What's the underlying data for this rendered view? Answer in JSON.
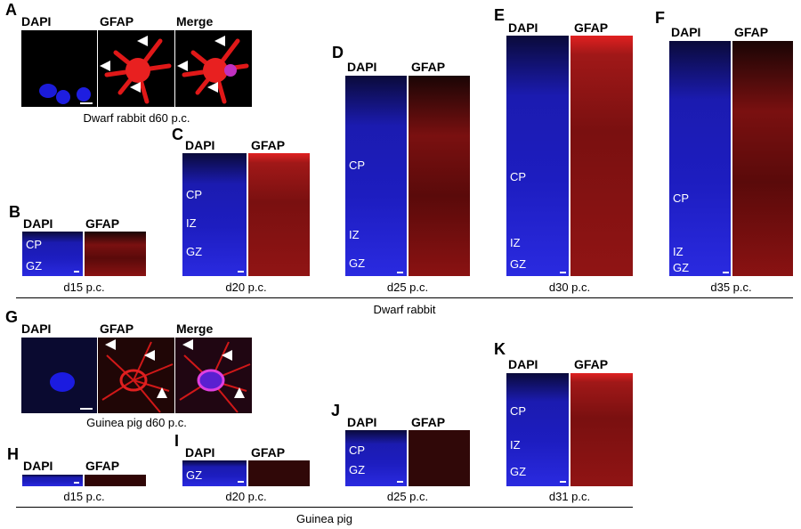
{
  "channels": {
    "dapi": "DAPI",
    "gfap": "GFAP",
    "merge": "Merge"
  },
  "panels": {
    "A": {
      "letter": "A",
      "caption": "Dwarf rabbit d60 p.c."
    },
    "B": {
      "letter": "B",
      "caption": "d15 p.c.",
      "zones": [
        "CP",
        "GZ"
      ]
    },
    "C": {
      "letter": "C",
      "caption": "d20 p.c.",
      "zones": [
        "CP",
        "IZ",
        "GZ"
      ]
    },
    "D": {
      "letter": "D",
      "caption": "d25 p.c.",
      "zones": [
        "CP",
        "IZ",
        "GZ"
      ]
    },
    "E": {
      "letter": "E",
      "caption": "d30 p.c.",
      "zones": [
        "CP",
        "IZ",
        "GZ"
      ]
    },
    "F": {
      "letter": "F",
      "caption": "d35 p.c.",
      "zones": [
        "CP",
        "IZ",
        "GZ"
      ]
    },
    "G": {
      "letter": "G",
      "caption": "Guinea pig d60 p.c."
    },
    "H": {
      "letter": "H",
      "caption": "d15 p.c."
    },
    "I": {
      "letter": "I",
      "caption": "d20 p.c.",
      "zones": [
        "GZ"
      ]
    },
    "J": {
      "letter": "J",
      "caption": "d25 p.c.",
      "zones": [
        "CP",
        "GZ"
      ]
    },
    "K": {
      "letter": "K",
      "caption": "d31 p.c.",
      "zones": [
        "CP",
        "IZ",
        "GZ"
      ]
    }
  },
  "groups": {
    "top": "Dwarf rabbit",
    "bottom": "Guinea pig"
  },
  "colors": {
    "dapi": "#1d1dc0",
    "gfap": "#b01515",
    "scale_bar": "#ffffff"
  }
}
